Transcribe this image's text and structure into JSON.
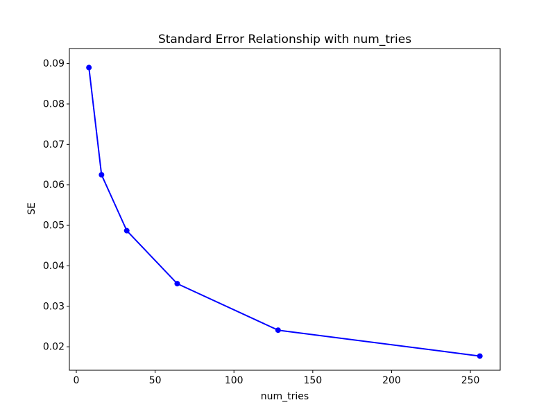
{
  "chart_data": {
    "type": "line",
    "title": "Standard Error Relationship with num_tries",
    "xlabel": "num_tries",
    "ylabel": "SE",
    "x": [
      8,
      16,
      32,
      64,
      128,
      256
    ],
    "y": [
      0.089,
      0.0625,
      0.0487,
      0.0356,
      0.0241,
      0.0177
    ],
    "xlim": [
      -4.4,
      268.9
    ],
    "ylim": [
      0.0142,
      0.0937
    ],
    "xticks": [
      0,
      50,
      100,
      150,
      200,
      250
    ],
    "xtick_labels": [
      "0",
      "50",
      "100",
      "150",
      "200",
      "250"
    ],
    "yticks": [
      0.02,
      0.03,
      0.04,
      0.05,
      0.06,
      0.07,
      0.08,
      0.09
    ],
    "ytick_labels": [
      "0.02",
      "0.03",
      "0.04",
      "0.05",
      "0.06",
      "0.07",
      "0.08",
      "0.09"
    ],
    "line_color": "#0000ff",
    "axis_color": "#000000",
    "text_color": "#000000",
    "background": "#ffffff",
    "marker": "o",
    "grid": false
  }
}
